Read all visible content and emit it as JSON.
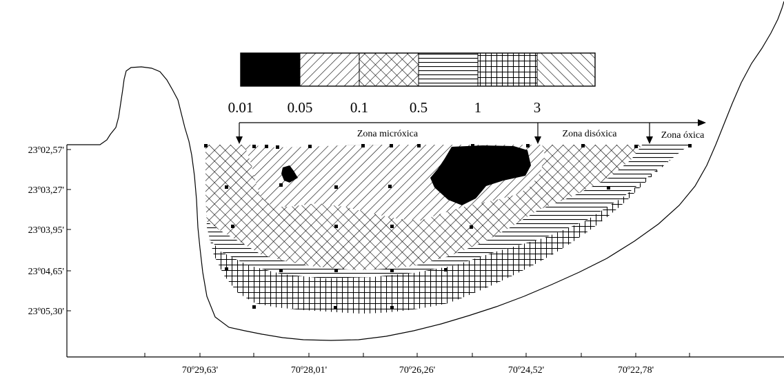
{
  "legend": {
    "classes": [
      {
        "id": "black",
        "pattern": "solid-black"
      },
      {
        "id": "diag",
        "pattern": "diagonal-lines"
      },
      {
        "id": "cross",
        "pattern": "cross-hatch"
      },
      {
        "id": "horiz",
        "pattern": "horizontal-lines"
      },
      {
        "id": "grid",
        "pattern": "square-grid"
      },
      {
        "id": "mixed",
        "pattern": "mixed-diagonal"
      }
    ],
    "thresholds": [
      "0.01",
      "0.05",
      "0.1",
      "0.5",
      "1",
      "3"
    ]
  },
  "zones": {
    "microxic": "Zona micróxica",
    "dysoxic": "Zona disóxica",
    "oxic": "Zona óxica"
  },
  "y_ticks": [
    "23º02,57'",
    "23º03,27'",
    "23º03,95'",
    "23º04,65'",
    "23º05,30'"
  ],
  "x_ticks": [
    "70º29,63'",
    "70º28,01'",
    "70º26,26'",
    "70º24,52'",
    "70º22,78'"
  ],
  "colors": {
    "ink": "#000000",
    "paper": "#ffffff"
  }
}
